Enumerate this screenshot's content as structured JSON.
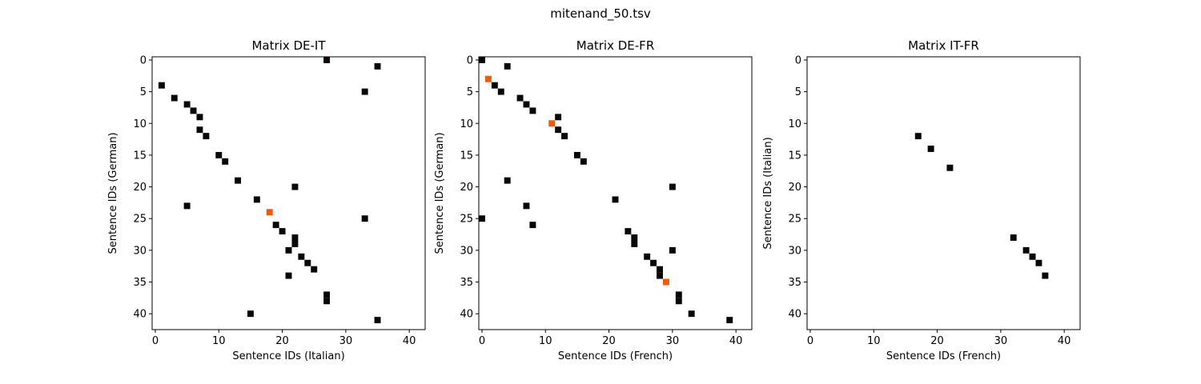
{
  "title": "mitenand_50.tsv",
  "colors": {
    "regular": "#0a0606",
    "highlight": "#f05a0a"
  },
  "chart_data": [
    {
      "type": "heatmap",
      "title": "Matrix DE-IT",
      "xlabel": "Sentence IDs (Italian)",
      "ylabel": "Sentence IDs (German)",
      "xlim": [
        -0.5,
        42.5
      ],
      "ylim": [
        42.5,
        -0.5
      ],
      "xticks": [
        "0",
        "10",
        "20",
        "30",
        "40"
      ],
      "yticks": [
        "0",
        "5",
        "10",
        "15",
        "20",
        "25",
        "30",
        "35",
        "40"
      ],
      "grid": false,
      "points": [
        [
          27,
          0
        ],
        [
          35,
          1
        ],
        [
          1,
          4
        ],
        [
          33,
          5
        ],
        [
          3,
          6
        ],
        [
          5,
          7
        ],
        [
          6,
          8
        ],
        [
          7,
          9
        ],
        [
          7,
          11
        ],
        [
          8,
          12
        ],
        [
          10,
          15
        ],
        [
          11,
          16
        ],
        [
          13,
          19
        ],
        [
          22,
          20
        ],
        [
          16,
          22
        ],
        [
          5,
          23
        ],
        [
          18,
          24
        ],
        [
          33,
          25
        ],
        [
          19,
          26
        ],
        [
          20,
          27
        ],
        [
          22,
          28
        ],
        [
          22,
          29
        ],
        [
          21,
          30
        ],
        [
          23,
          31
        ],
        [
          24,
          32
        ],
        [
          25,
          33
        ],
        [
          21,
          34
        ],
        [
          27,
          37
        ],
        [
          27,
          38
        ],
        [
          15,
          40
        ],
        [
          35,
          41
        ]
      ],
      "highlight": [
        [
          18,
          24
        ]
      ]
    },
    {
      "type": "heatmap",
      "title": "Matrix DE-FR",
      "xlabel": "Sentence IDs (French)",
      "ylabel": "Sentence IDs (German)",
      "xlim": [
        -0.5,
        42.5
      ],
      "ylim": [
        42.5,
        -0.5
      ],
      "xticks": [
        "0",
        "10",
        "20",
        "30",
        "40"
      ],
      "yticks": [
        "0",
        "5",
        "10",
        "15",
        "20",
        "25",
        "30",
        "35",
        "40"
      ],
      "grid": false,
      "points": [
        [
          0,
          0
        ],
        [
          4,
          1
        ],
        [
          1,
          3
        ],
        [
          2,
          4
        ],
        [
          3,
          5
        ],
        [
          6,
          6
        ],
        [
          7,
          7
        ],
        [
          8,
          8
        ],
        [
          12,
          9
        ],
        [
          11,
          10
        ],
        [
          12,
          11
        ],
        [
          13,
          12
        ],
        [
          15,
          15
        ],
        [
          16,
          16
        ],
        [
          4,
          19
        ],
        [
          30,
          20
        ],
        [
          21,
          22
        ],
        [
          7,
          23
        ],
        [
          0,
          25
        ],
        [
          8,
          26
        ],
        [
          23,
          27
        ],
        [
          24,
          28
        ],
        [
          24,
          29
        ],
        [
          30,
          30
        ],
        [
          26,
          31
        ],
        [
          27,
          32
        ],
        [
          28,
          33
        ],
        [
          28,
          34
        ],
        [
          29,
          35
        ],
        [
          31,
          37
        ],
        [
          31,
          38
        ],
        [
          33,
          40
        ],
        [
          39,
          41
        ]
      ],
      "highlight": [
        [
          1,
          3
        ],
        [
          11,
          10
        ],
        [
          29,
          35
        ]
      ]
    },
    {
      "type": "heatmap",
      "title": "Matrix IT-FR",
      "xlabel": "Sentence IDs (French)",
      "ylabel": "Sentence IDs (Italian)",
      "xlim": [
        -0.5,
        42.5
      ],
      "ylim": [
        42.5,
        -0.5
      ],
      "xticks": [
        "0",
        "10",
        "20",
        "30",
        "40"
      ],
      "yticks": [
        "0",
        "5",
        "10",
        "15",
        "20",
        "25",
        "30",
        "35",
        "40"
      ],
      "grid": false,
      "points": [
        [
          17,
          12
        ],
        [
          19,
          14
        ],
        [
          22,
          17
        ],
        [
          32,
          28
        ],
        [
          34,
          30
        ],
        [
          35,
          31
        ],
        [
          36,
          32
        ],
        [
          37,
          34
        ]
      ],
      "highlight": []
    }
  ]
}
